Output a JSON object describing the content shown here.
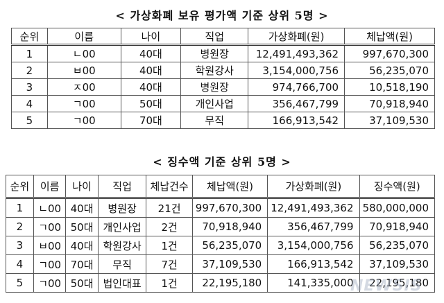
{
  "table1": {
    "title": "< 가상화폐 보유 평가액 기준 상위 5명 >",
    "headers": [
      "순위",
      "이름",
      "나이",
      "직업",
      "가상화폐(원)",
      "체납액(원)"
    ],
    "rows": [
      [
        "1",
        "ㄴ00",
        "40대",
        "병원장",
        "12,491,493,362",
        "997,670,300"
      ],
      [
        "2",
        "ㅂ00",
        "40대",
        "학원강사",
        "3,154,000,756",
        "56,235,070"
      ],
      [
        "3",
        "ㅈ00",
        "40대",
        "병원장",
        "974,766,700",
        "10,518,190"
      ],
      [
        "4",
        "ㄱ00",
        "50대",
        "개인사업",
        "356,467,799",
        "70,918,940"
      ],
      [
        "5",
        "ㄱ00",
        "70대",
        "무직",
        "166,913,542",
        "37,109,530"
      ]
    ]
  },
  "table2": {
    "title": "< 징수액 기준 상위 5명 >",
    "headers": [
      "순위",
      "이름",
      "나이",
      "직업",
      "체납건수",
      "체납액(원)",
      "가상화폐(원)",
      "징수액(원)"
    ],
    "rows": [
      [
        "1",
        "ㄴ00",
        "40대",
        "병원장",
        "21건",
        "997,670,300",
        "12,491,493,362",
        "580,000,000"
      ],
      [
        "2",
        "ㄱ00",
        "50대",
        "개인사업",
        "2건",
        "70,918,940",
        "356,467,799",
        "70,918,940"
      ],
      [
        "3",
        "ㅂ00",
        "40대",
        "학원강사",
        "1건",
        "56,235,070",
        "3,154,000,756",
        "56,235,070"
      ],
      [
        "4",
        "ㄱ00",
        "70대",
        "무직",
        "7건",
        "37,109,530",
        "166,913,542",
        "37,109,530"
      ],
      [
        "5",
        "ㄱ00",
        "50대",
        "법인대표",
        "1건",
        "22,195,180",
        "141,335,000",
        "22,195,180"
      ]
    ]
  },
  "watermark": "NEWSIS"
}
